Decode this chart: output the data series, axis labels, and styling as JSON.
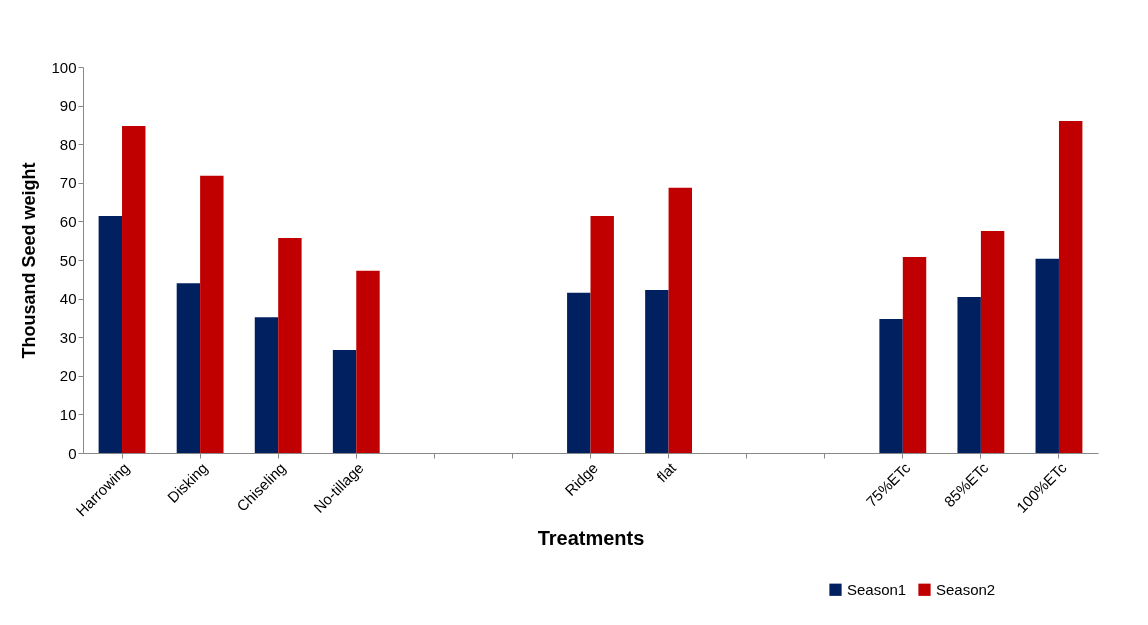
{
  "chart_data": {
    "type": "bar",
    "xlabel": "Treatments",
    "ylabel": "Thousand Seed weight",
    "categories": [
      "Harrowing",
      "Disking",
      "Chiseling",
      "No-tillage",
      null,
      null,
      "Ridge",
      "flat",
      null,
      null,
      "75%ETc",
      "85%ETc",
      "100%ETc"
    ],
    "series": [
      {
        "name": "Season1",
        "color": "#002060",
        "values": [
          61.4,
          44,
          35.2,
          26.7,
          null,
          null,
          41.5,
          42.2,
          null,
          null,
          34.7,
          40.4,
          50.3
        ]
      },
      {
        "name": "Season2",
        "color": "#c00000",
        "values": [
          84.7,
          71.8,
          55.7,
          47.2,
          null,
          null,
          61.4,
          68.7,
          null,
          null,
          50.8,
          57.5,
          86
        ]
      }
    ],
    "ylim": [
      0,
      100
    ],
    "yticks": [
      0,
      10,
      20,
      30,
      40,
      50,
      60,
      70,
      80,
      90,
      100
    ],
    "grid": false,
    "legend": "bottom"
  }
}
